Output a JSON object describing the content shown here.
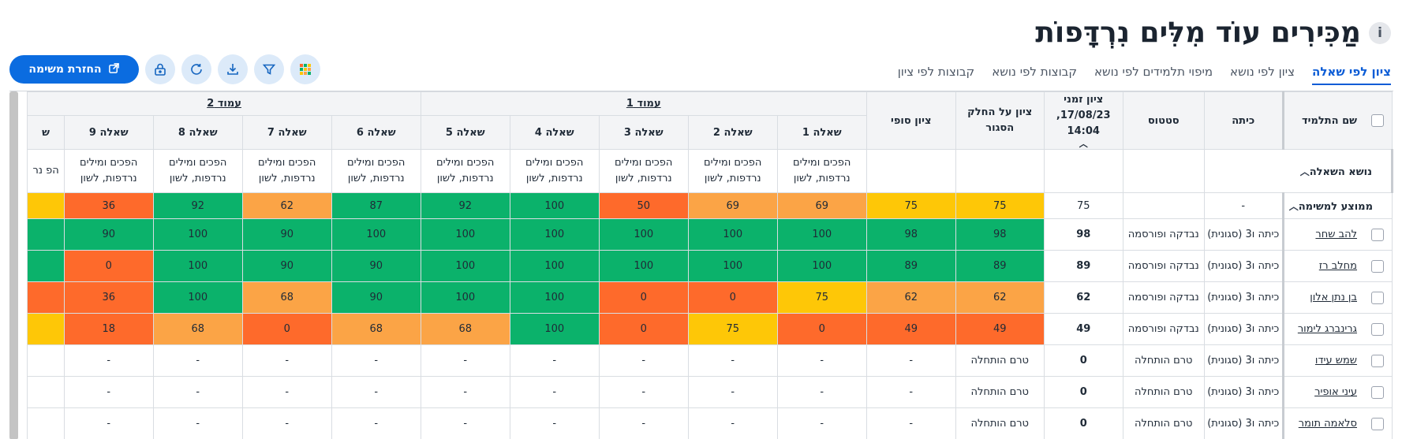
{
  "header": {
    "title": "מַכִּירִים עוֹד מִלִּים נִרְדָּפוֹת",
    "info_icon": "i"
  },
  "tabs": [
    {
      "label": "ציון לפי שאלה",
      "active": true
    },
    {
      "label": "ציון לפי נושא",
      "active": false
    },
    {
      "label": "מיפוי תלמידים לפי נושא",
      "active": false
    },
    {
      "label": "קבוצות לפי נושא",
      "active": false
    },
    {
      "label": "קבוצות לפי ציון",
      "active": false
    }
  ],
  "toolbar": {
    "return_task_label": "החזרת משימה",
    "icons": [
      "grid-icon",
      "filter-icon",
      "download-icon",
      "refresh-icon",
      "lock-icon"
    ]
  },
  "colors": {
    "green": "#0bb26b",
    "light_orange": "#fba446",
    "orange": "#fe6a2b",
    "yellow": "#fec707",
    "accent": "#0b6ce0"
  },
  "table": {
    "headers": {
      "student_name": "שם התלמיד",
      "class": "כיתה",
      "status": "סטטוס",
      "timed_score_line1": "ציון זמני",
      "timed_score_line2": "17/08/23, 14:04",
      "checked_part_score": "ציון על החלק הסגור",
      "final_score": "ציון סופי",
      "group1": "עמוד 1",
      "group2": "עמוד 2",
      "questions": [
        "שאלה 1",
        "שאלה 2",
        "שאלה 3",
        "שאלה 4",
        "שאלה 5",
        "שאלה 6",
        "שאלה 7",
        "שאלה 8",
        "שאלה 9",
        "ש"
      ]
    },
    "topic_row": {
      "label": "נושא השאלה",
      "topics": [
        "הפכים ומילים נרדפות, לשון",
        "הפכים ומילים נרדפות, לשון",
        "הפכים ומילים נרדפות, לשון",
        "הפכים ומילים נרדפות, לשון",
        "הפכים ומילים נרדפות, לשון",
        "הפכים ומילים נרדפות, לשון",
        "הפכים ומילים נרדפות, לשון",
        "הפכים ומילים נרדפות, לשון",
        "הפכים ומילים נרדפות, לשון",
        "הפ נר"
      ]
    },
    "average_row": {
      "label": "ממוצע למשימה",
      "class": "-",
      "status": "",
      "timed": "75",
      "checked": "75",
      "final": "75",
      "scores": [
        "69",
        "69",
        "50",
        "100",
        "92",
        "87",
        "62",
        "92",
        "36",
        ""
      ],
      "colors": [
        "light_orange",
        "light_orange",
        "orange",
        "green",
        "green",
        "green",
        "light_orange",
        "green",
        "orange",
        "yellow"
      ]
    },
    "rows": [
      {
        "name": "להב שחר",
        "class": "כיתה ו3 (סגונית)",
        "status": "נבדקה ופורסמה",
        "timed": "98",
        "checked": "98",
        "final": "98",
        "checked_color": "green",
        "final_color": "green",
        "scores": [
          "100",
          "100",
          "100",
          "100",
          "100",
          "100",
          "90",
          "100",
          "90",
          ""
        ],
        "colors": [
          "green",
          "green",
          "green",
          "green",
          "green",
          "green",
          "green",
          "green",
          "green",
          "green"
        ]
      },
      {
        "name": "מחלב רז",
        "class": "כיתה ו3 (סגונית)",
        "status": "נבדקה ופורסמה",
        "timed": "89",
        "checked": "89",
        "final": "89",
        "checked_color": "green",
        "final_color": "green",
        "scores": [
          "100",
          "100",
          "100",
          "100",
          "100",
          "90",
          "90",
          "100",
          "0",
          ""
        ],
        "colors": [
          "green",
          "green",
          "green",
          "green",
          "green",
          "green",
          "green",
          "green",
          "orange",
          "green"
        ]
      },
      {
        "name": "בן נתן אלון",
        "class": "כיתה ו3 (סגונית)",
        "status": "נבדקה ופורסמה",
        "timed": "62",
        "checked": "62",
        "final": "62",
        "checked_color": "light_orange",
        "final_color": "light_orange",
        "scores": [
          "75",
          "0",
          "0",
          "100",
          "100",
          "90",
          "68",
          "100",
          "36",
          ""
        ],
        "colors": [
          "yellow",
          "orange",
          "orange",
          "green",
          "green",
          "green",
          "light_orange",
          "green",
          "orange",
          "orange"
        ]
      },
      {
        "name": "גרינברג לימור",
        "class": "כיתה ו3 (סגונית)",
        "status": "נבדקה ופורסמה",
        "timed": "49",
        "checked": "49",
        "final": "49",
        "checked_color": "orange",
        "final_color": "orange",
        "scores": [
          "0",
          "75",
          "0",
          "100",
          "68",
          "68",
          "0",
          "68",
          "18",
          ""
        ],
        "colors": [
          "orange",
          "yellow",
          "orange",
          "green",
          "light_orange",
          "light_orange",
          "orange",
          "light_orange",
          "orange",
          "yellow"
        ]
      },
      {
        "name": "שמש עידו",
        "class": "כיתה ו3 (סגונית)",
        "status": "טרם הותחלה",
        "timed": "0",
        "checked": "טרם הותחלה",
        "final": "-",
        "checked_color": "",
        "final_color": "",
        "scores": [
          "-",
          "-",
          "-",
          "-",
          "-",
          "-",
          "-",
          "-",
          "-",
          ""
        ],
        "colors": [
          "",
          "",
          "",
          "",
          "",
          "",
          "",
          "",
          "",
          ""
        ]
      },
      {
        "name": "עיני אופיר",
        "class": "כיתה ו3 (סגונית)",
        "status": "טרם הותחלה",
        "timed": "0",
        "checked": "טרם הותחלה",
        "final": "-",
        "checked_color": "",
        "final_color": "",
        "scores": [
          "-",
          "-",
          "-",
          "-",
          "-",
          "-",
          "-",
          "-",
          "-",
          ""
        ],
        "colors": [
          "",
          "",
          "",
          "",
          "",
          "",
          "",
          "",
          "",
          ""
        ]
      },
      {
        "name": "סלאמה תומר",
        "class": "כיתה ו3 (סגונית)",
        "status": "טרם הותחלה",
        "timed": "0",
        "checked": "טרם הותחלה",
        "final": "-",
        "checked_color": "",
        "final_color": "",
        "scores": [
          "-",
          "-",
          "-",
          "-",
          "-",
          "-",
          "-",
          "-",
          "-",
          ""
        ],
        "colors": [
          "",
          "",
          "",
          "",
          "",
          "",
          "",
          "",
          "",
          ""
        ]
      }
    ]
  }
}
